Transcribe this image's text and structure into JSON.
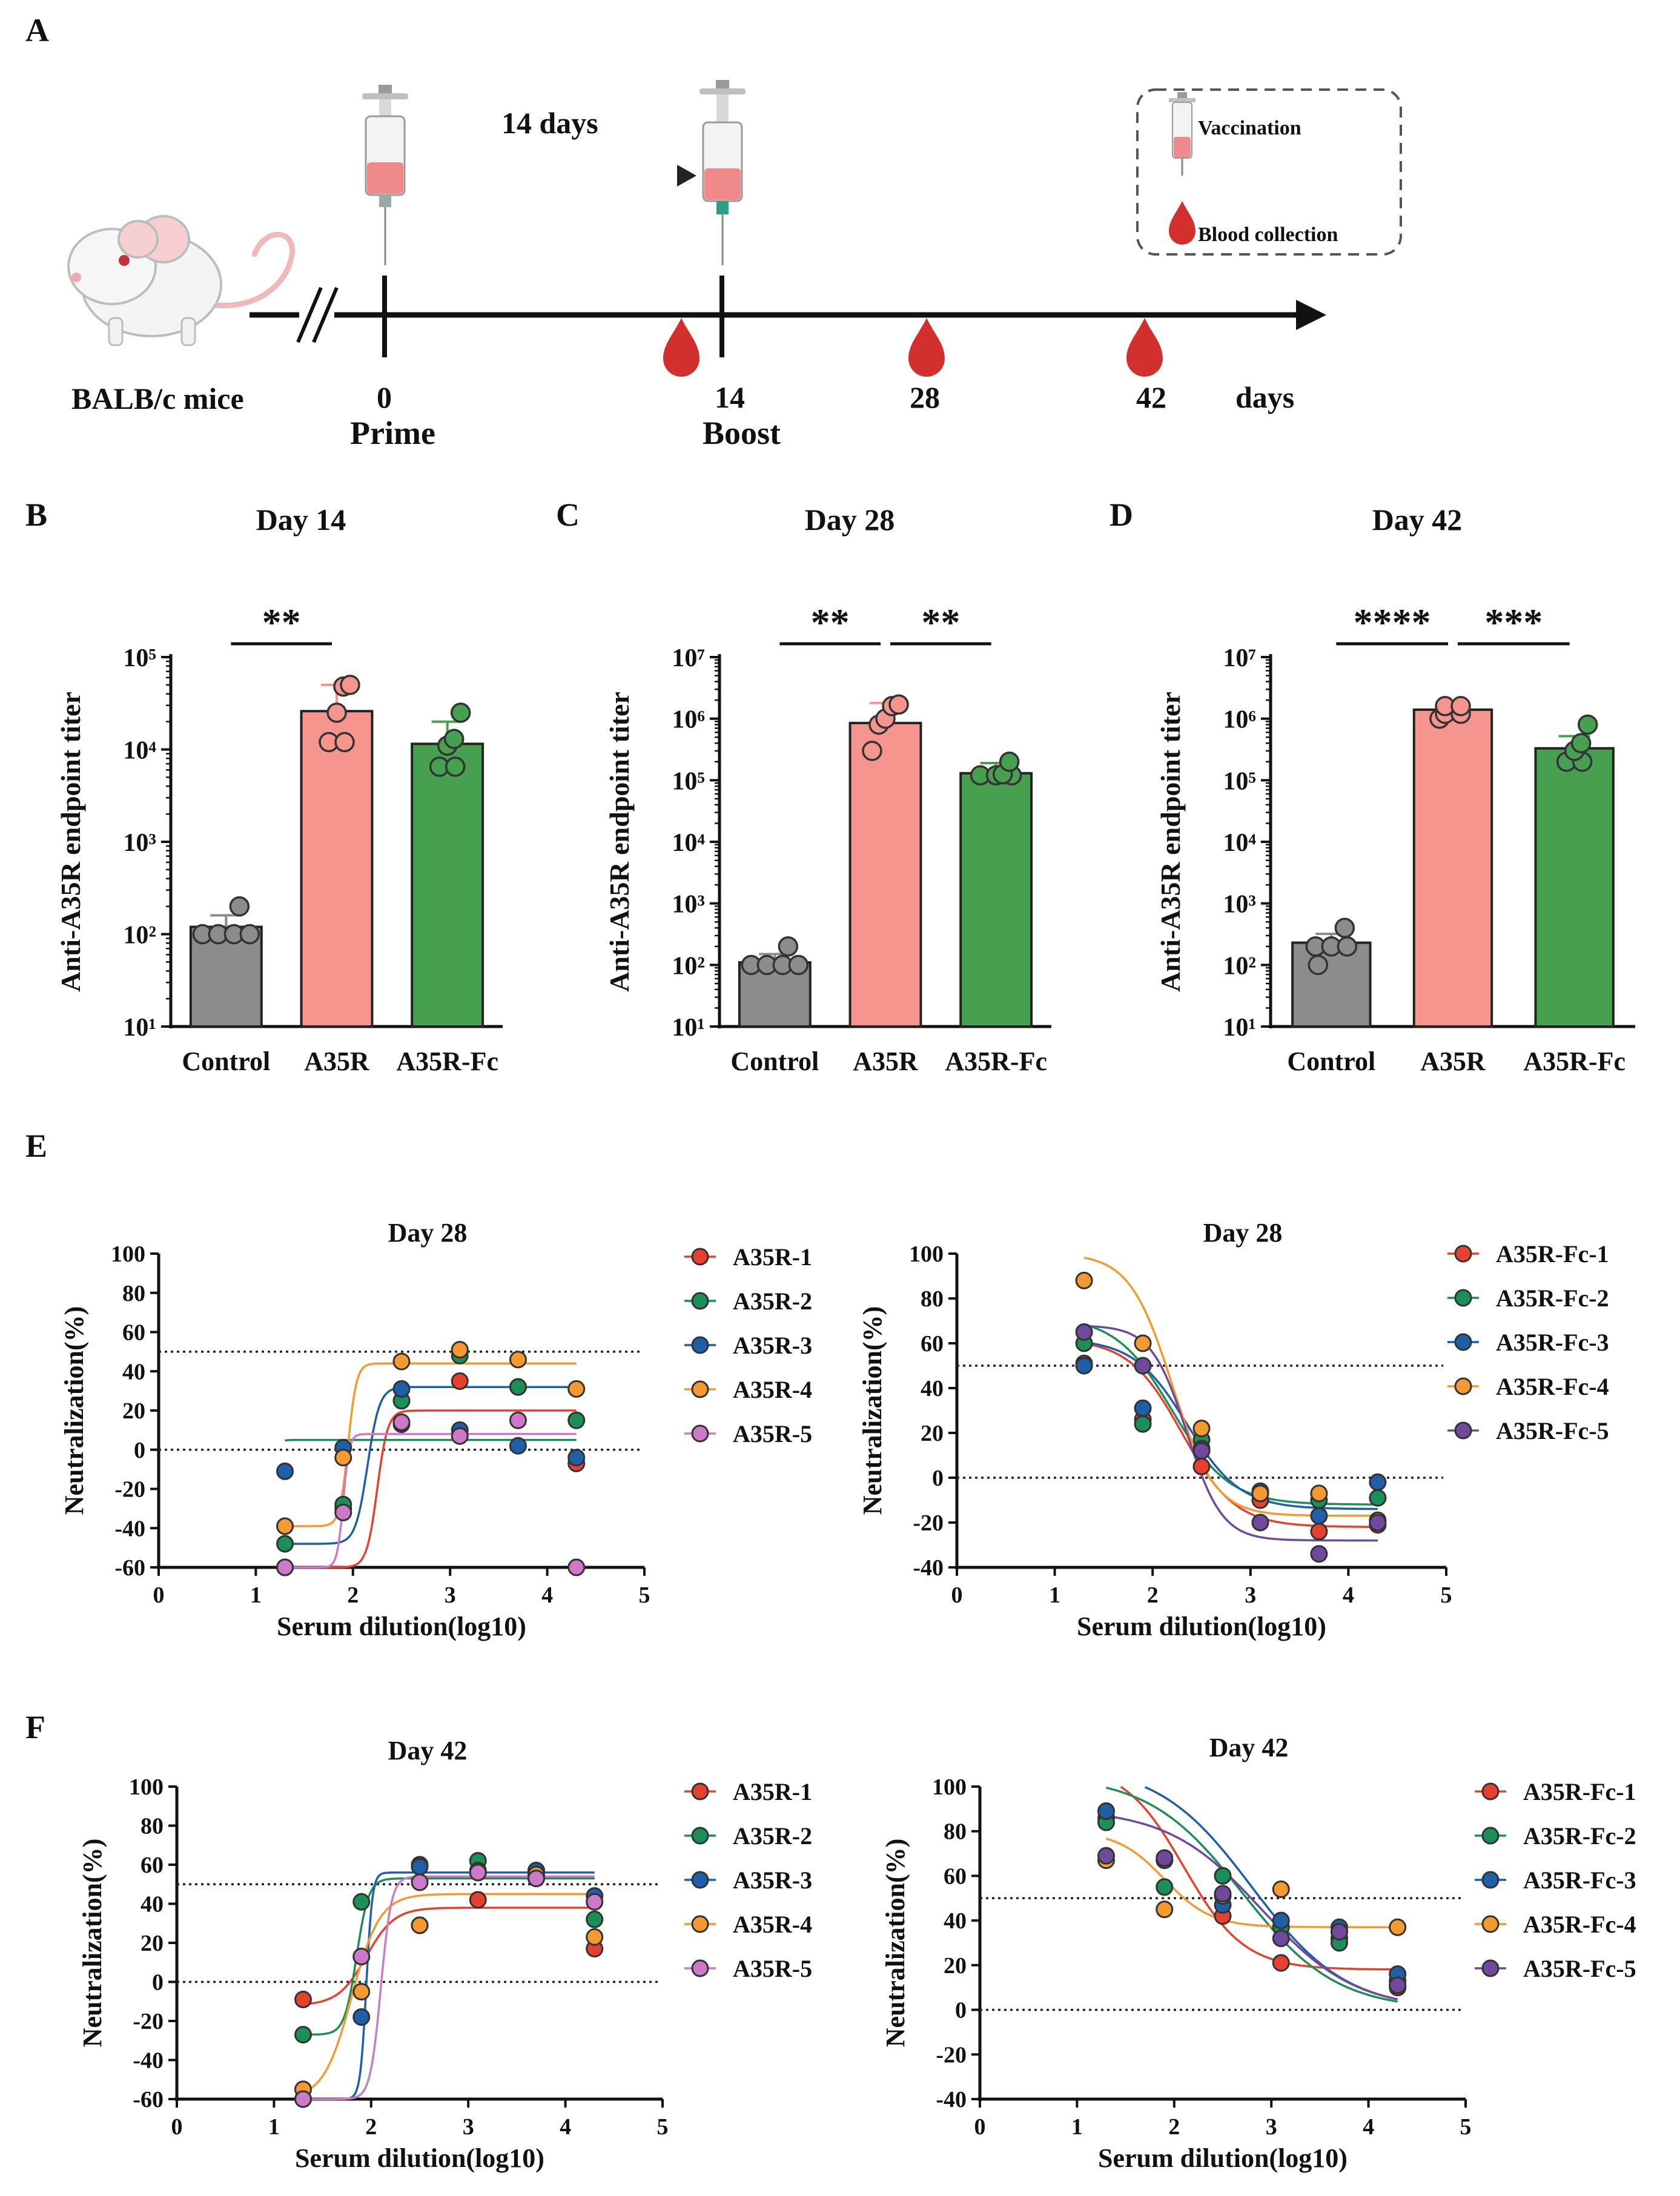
{
  "colors": {
    "control": "#8c8c8c",
    "a35r": "#f5958e",
    "a35rfc": "#46a04f",
    "series": [
      "#e8402f",
      "#1a8f56",
      "#1f5fa8",
      "#f59a30",
      "#cc7ac8"
    ],
    "series_fc": [
      "#e8402f",
      "#1a8f56",
      "#1f5fa8",
      "#f59a30",
      "#6f4a9c"
    ],
    "blood": "#d2302f",
    "syringe_fill": "#f08a8a"
  },
  "panel_letters": [
    "A",
    "B",
    "C",
    "D",
    "E",
    "F"
  ],
  "schematic": {
    "mouse_label": "BALB/c mice",
    "interval_label": "14 days",
    "day_labels": [
      "0",
      "14",
      "28",
      "42"
    ],
    "unit_label": "days",
    "prime_label": "Prime",
    "boost_label": "Boost",
    "legend_vaccination": "Vaccination",
    "legend_blood": "Blood collection"
  },
  "chart_data": [
    {
      "id": "B",
      "type": "bar",
      "scale": "log",
      "title": "Day 14",
      "ylabel": "Anti-A35R endpoint titer",
      "ylim": [
        10,
        100000
      ],
      "yticks": [
        1,
        2,
        3,
        4,
        5
      ],
      "categories": [
        "Control",
        "A35R",
        "A35R-Fc"
      ],
      "values": [
        120,
        26000,
        11500
      ],
      "errors": [
        [
          100,
          160
        ],
        [
          14000,
          50000
        ],
        [
          6000,
          20000
        ]
      ],
      "points": [
        [
          100,
          100,
          100,
          100,
          200
        ],
        [
          12000,
          12000,
          25000,
          48000,
          50000
        ],
        [
          6500,
          6500,
          11000,
          13000,
          25000
        ]
      ],
      "significance": [
        {
          "from": 0,
          "to": 1,
          "label": "**"
        }
      ]
    },
    {
      "id": "C",
      "type": "bar",
      "scale": "log",
      "title": "Day 28",
      "ylabel": "Anti-A35R endpoint titer",
      "ylim": [
        10,
        10000000
      ],
      "yticks": [
        1,
        2,
        3,
        4,
        5,
        6,
        7
      ],
      "categories": [
        "Control",
        "A35R",
        "A35R-Fc"
      ],
      "values": [
        110,
        850000,
        130000
      ],
      "errors": [
        [
          100,
          150
        ],
        [
          400000,
          1800000
        ],
        [
          110000,
          190000
        ]
      ],
      "points": [
        [
          100,
          100,
          100,
          100,
          200
        ],
        [
          300000,
          800000,
          1000000,
          1600000,
          1700000
        ],
        [
          120000,
          120000,
          120000,
          125000,
          200000
        ]
      ],
      "significance": [
        {
          "from": 0,
          "to": 1,
          "label": "**"
        },
        {
          "from": 1,
          "to": 2,
          "label": "**"
        }
      ]
    },
    {
      "id": "D",
      "type": "bar",
      "scale": "log",
      "title": "Day 42",
      "ylabel": "Anti-A35R endpoint titer",
      "ylim": [
        10,
        10000000
      ],
      "yticks": [
        1,
        2,
        3,
        4,
        5,
        6,
        7
      ],
      "categories": [
        "Control",
        "A35R",
        "A35R-Fc"
      ],
      "values": [
        230,
        1400000,
        330000
      ],
      "errors": [
        [
          160,
          320
        ],
        [
          1000000,
          1700000
        ],
        [
          200000,
          520000
        ]
      ],
      "points": [
        [
          100,
          200,
          200,
          200,
          400
        ],
        [
          1000000,
          1200000,
          1200000,
          1600000,
          1600000
        ],
        [
          200000,
          200000,
          300000,
          400000,
          800000
        ]
      ],
      "significance": [
        {
          "from": 0,
          "to": 1,
          "label": "****"
        },
        {
          "from": 1,
          "to": 2,
          "label": "***"
        }
      ]
    },
    {
      "id": "E1",
      "type": "scatter",
      "title": "Day 28",
      "xlabel": "Serum dilution(log10)",
      "ylabel": "Neutralization(%)",
      "xlim": [
        0,
        5
      ],
      "ylim": [
        -60,
        100
      ],
      "xticks": [
        0,
        1,
        2,
        3,
        4,
        5
      ],
      "yticks": [
        -60,
        -40,
        -20,
        0,
        20,
        40,
        60,
        80,
        100
      ],
      "refs": [
        50,
        0
      ],
      "x": [
        1.3,
        1.9,
        2.5,
        3.1,
        3.7,
        4.3
      ],
      "series": [
        {
          "name": "A35R-1",
          "values": [
            -60,
            -30,
            13,
            35,
            32,
            -7
          ],
          "curve": {
            "bottom": -60,
            "top": 20,
            "ec": 2.25,
            "hill": 8
          }
        },
        {
          "name": "A35R-2",
          "values": [
            -48,
            -28,
            25,
            48,
            32,
            15
          ],
          "curve": {
            "bottom": -60,
            "top": 5,
            "ec": 1.0,
            "hill": 8
          }
        },
        {
          "name": "A35R-3",
          "values": [
            -11,
            1,
            31,
            10,
            2,
            -4
          ],
          "curve": {
            "bottom": -48,
            "top": 32,
            "ec": 2.15,
            "hill": 7
          }
        },
        {
          "name": "A35R-4",
          "values": [
            -39,
            -4,
            45,
            51,
            46,
            31
          ],
          "curve": {
            "bottom": -39,
            "top": 44,
            "ec": 1.95,
            "hill": 10
          }
        },
        {
          "name": "A35R-5",
          "values": [
            -60,
            -32,
            14,
            7,
            15,
            -60
          ],
          "curve": {
            "bottom": -60,
            "top": 8,
            "ec": 1.9,
            "hill": 14
          }
        }
      ]
    },
    {
      "id": "E2",
      "type": "scatter",
      "title": "Day 28",
      "xlabel": "Serum dilution(log10)",
      "ylabel": "Neutralization(%)",
      "xlim": [
        0,
        5
      ],
      "ylim": [
        -40,
        100
      ],
      "xticks": [
        0,
        1,
        2,
        3,
        4,
        5
      ],
      "yticks": [
        -40,
        -20,
        0,
        20,
        40,
        60,
        80,
        100
      ],
      "refs": [
        50,
        0
      ],
      "x": [
        1.3,
        1.9,
        2.5,
        3.1,
        3.7,
        4.3
      ],
      "series": [
        {
          "name": "A35R-Fc-1",
          "values": [
            51,
            26,
            5,
            -10,
            -24,
            -21
          ],
          "curve": {
            "bottom": -22,
            "top": 62,
            "ec": 2.3,
            "hill": -1.6
          }
        },
        {
          "name": "A35R-Fc-2",
          "values": [
            60,
            24,
            17,
            -6,
            -10,
            -9
          ],
          "curve": {
            "bottom": -12,
            "top": 72,
            "ec": 2.2,
            "hill": -1.5
          }
        },
        {
          "name": "A35R-Fc-3",
          "values": [
            50,
            31,
            13,
            -7,
            -17,
            -2
          ],
          "curve": {
            "bottom": -14,
            "top": 62,
            "ec": 2.35,
            "hill": -1.6
          }
        },
        {
          "name": "A35R-Fc-4",
          "values": [
            88,
            60,
            22,
            -7,
            -7,
            -19
          ],
          "curve": {
            "bottom": -17,
            "top": 100,
            "ec": 2.2,
            "hill": -2.0
          }
        },
        {
          "name": "A35R-Fc-5",
          "values": [
            65,
            50,
            12,
            -20,
            -34,
            -20
          ],
          "curve": {
            "bottom": -28,
            "top": 68,
            "ec": 2.35,
            "hill": -2.4
          }
        }
      ]
    },
    {
      "id": "F1",
      "type": "scatter",
      "title": "Day 42",
      "xlabel": "Serum dilution(log10)",
      "ylabel": "Neutralization(%)",
      "xlim": [
        0,
        5
      ],
      "ylim": [
        -60,
        100
      ],
      "xticks": [
        0,
        1,
        2,
        3,
        4,
        5
      ],
      "yticks": [
        -60,
        -40,
        -20,
        0,
        20,
        40,
        60,
        80,
        100
      ],
      "refs": [
        50,
        0
      ],
      "x": [
        1.3,
        1.9,
        2.5,
        3.1,
        3.7,
        4.3
      ],
      "series": [
        {
          "name": "A35R-1",
          "values": [
            -9,
            13,
            29,
            42,
            53,
            17
          ],
          "curve": {
            "bottom": -12,
            "top": 38,
            "ec": 1.95,
            "hill": 3
          }
        },
        {
          "name": "A35R-2",
          "values": [
            -27,
            41,
            60,
            62,
            57,
            32
          ],
          "curve": {
            "bottom": -27,
            "top": 53,
            "ec": 1.85,
            "hill": 7
          }
        },
        {
          "name": "A35R-3",
          "values": [
            -60,
            -18,
            59,
            57,
            57,
            44
          ],
          "curve": {
            "bottom": -60,
            "top": 56,
            "ec": 1.95,
            "hill": 14
          }
        },
        {
          "name": "A35R-4",
          "values": [
            -55,
            -5,
            29,
            56,
            55,
            23
          ],
          "curve": {
            "bottom": -60,
            "top": 45,
            "ec": 1.8,
            "hill": 3
          }
        },
        {
          "name": "A35R-5",
          "values": [
            -60,
            13,
            51,
            56,
            53,
            41
          ],
          "curve": {
            "bottom": -60,
            "top": 54,
            "ec": 2.1,
            "hill": 8
          }
        }
      ]
    },
    {
      "id": "F2",
      "type": "scatter",
      "title": "Day 42",
      "xlabel": "Serum dilution(log10)",
      "ylabel": "Neutralization(%)",
      "xlim": [
        0,
        5
      ],
      "ylim": [
        -40,
        100
      ],
      "xticks": [
        0,
        1,
        2,
        3,
        4,
        5
      ],
      "yticks": [
        -40,
        -20,
        0,
        20,
        40,
        60,
        80,
        100
      ],
      "refs": [
        50,
        0
      ],
      "x": [
        1.3,
        1.9,
        2.5,
        3.1,
        3.7,
        4.3
      ],
      "series": [
        {
          "name": "A35R-Fc-1",
          "values": [
            86,
            67,
            42,
            21,
            32,
            10
          ],
          "curve": {
            "bottom": 18,
            "top": 110,
            "ec": 2.1,
            "hill": -1.4
          }
        },
        {
          "name": "A35R-Fc-2",
          "values": [
            84,
            55,
            60,
            37,
            30,
            13
          ],
          "curve": {
            "bottom": 0,
            "top": 105,
            "ec": 2.7,
            "hill": -0.9
          }
        },
        {
          "name": "A35R-Fc-3",
          "values": [
            89,
            67,
            47,
            40,
            37,
            16
          ],
          "curve": {
            "bottom": 0,
            "top": 110,
            "ec": 2.8,
            "hill": -0.9
          }
        },
        {
          "name": "A35R-Fc-4",
          "values": [
            67,
            45,
            51,
            54,
            35,
            37
          ],
          "curve": {
            "bottom": 37,
            "top": 80,
            "ec": 1.9,
            "hill": -1.8
          }
        },
        {
          "name": "A35R-Fc-5",
          "values": [
            69,
            68,
            52,
            32,
            35,
            11
          ],
          "curve": {
            "bottom": 0,
            "top": 90,
            "ec": 2.9,
            "hill": -0.9
          }
        }
      ]
    }
  ]
}
